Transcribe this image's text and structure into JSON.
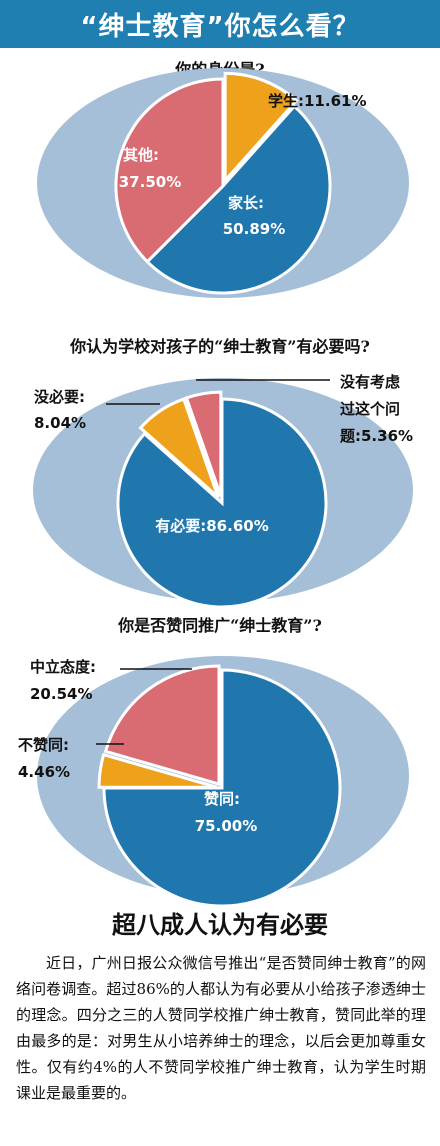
{
  "header": {
    "title": "“绅士教育”你怎么看？"
  },
  "colors": {
    "banner": "#1f7fb0",
    "ring": "#a6bfd8",
    "blue": "#1f77ae",
    "orange": "#eea21b",
    "pink": "#d96b72"
  },
  "chart_data": [
    {
      "type": "pie",
      "title": "你的身份是?",
      "slices": [
        {
          "label": "学生:",
          "value": 11.61,
          "display": "11.61%",
          "color": "#eea21b"
        },
        {
          "label": "家长:",
          "value": 50.89,
          "display": "50.89%",
          "color": "#1f77ae"
        },
        {
          "label": "其他:",
          "value": 37.5,
          "display": "37.50%",
          "color": "#d96b72"
        }
      ]
    },
    {
      "type": "pie",
      "title": "你认为学校对孩子的“绅士教育”有必要吗?",
      "slices": [
        {
          "label": "有必要:",
          "value": 86.6,
          "display": "86.60%",
          "color": "#1f77ae"
        },
        {
          "label": "没必要:",
          "value": 8.04,
          "display": "8.04%",
          "color": "#eea21b"
        },
        {
          "label": "没有考虑过这个问题:",
          "value": 5.36,
          "display": "5.36%",
          "color": "#d96b72"
        }
      ]
    },
    {
      "type": "pie",
      "title": "你是否赞同推广“绅士教育”?",
      "slices": [
        {
          "label": "赞同:",
          "value": 75.0,
          "display": "75.00%",
          "color": "#1f77ae"
        },
        {
          "label": "不赞同:",
          "value": 4.46,
          "display": "4.46%",
          "color": "#eea21b"
        },
        {
          "label": "中立态度:",
          "value": 20.54,
          "display": "20.54%",
          "color": "#d96b72"
        }
      ]
    }
  ],
  "labels": {
    "c1": {
      "student": [
        "学生:11.61%"
      ],
      "parent": [
        "家长:",
        "50.89%"
      ],
      "other": [
        "其他:",
        "37.50%"
      ]
    },
    "c2": {
      "necessary": [
        "有必要:86.60%"
      ],
      "unnecessary": [
        "没必要:",
        "8.04%"
      ],
      "notconsidered": [
        "没有考虑",
        "过这个问",
        "题:5.36%"
      ]
    },
    "c3": {
      "agree": [
        "赞同:",
        "75.00%"
      ],
      "disagree": [
        "不赞同:",
        "4.46%"
      ],
      "neutral": [
        "中立态度:",
        "20.54%"
      ]
    }
  },
  "conclusion": "超八成人认为有必要",
  "article": "近日，广州日报公众微信号推出“是否赞同绅士教育”的网络问卷调查。超过86%的人都认为有必要从小给孩子渗透绅士的理念。四分之三的人赞同学校推广绅士教育，赞同此举的理由最多的是：对男生从小培养绅士的理念，以后会更加尊重女性。仅有约4%的人不赞同学校推广绅士教育，认为学生时期课业是最重要的。"
}
